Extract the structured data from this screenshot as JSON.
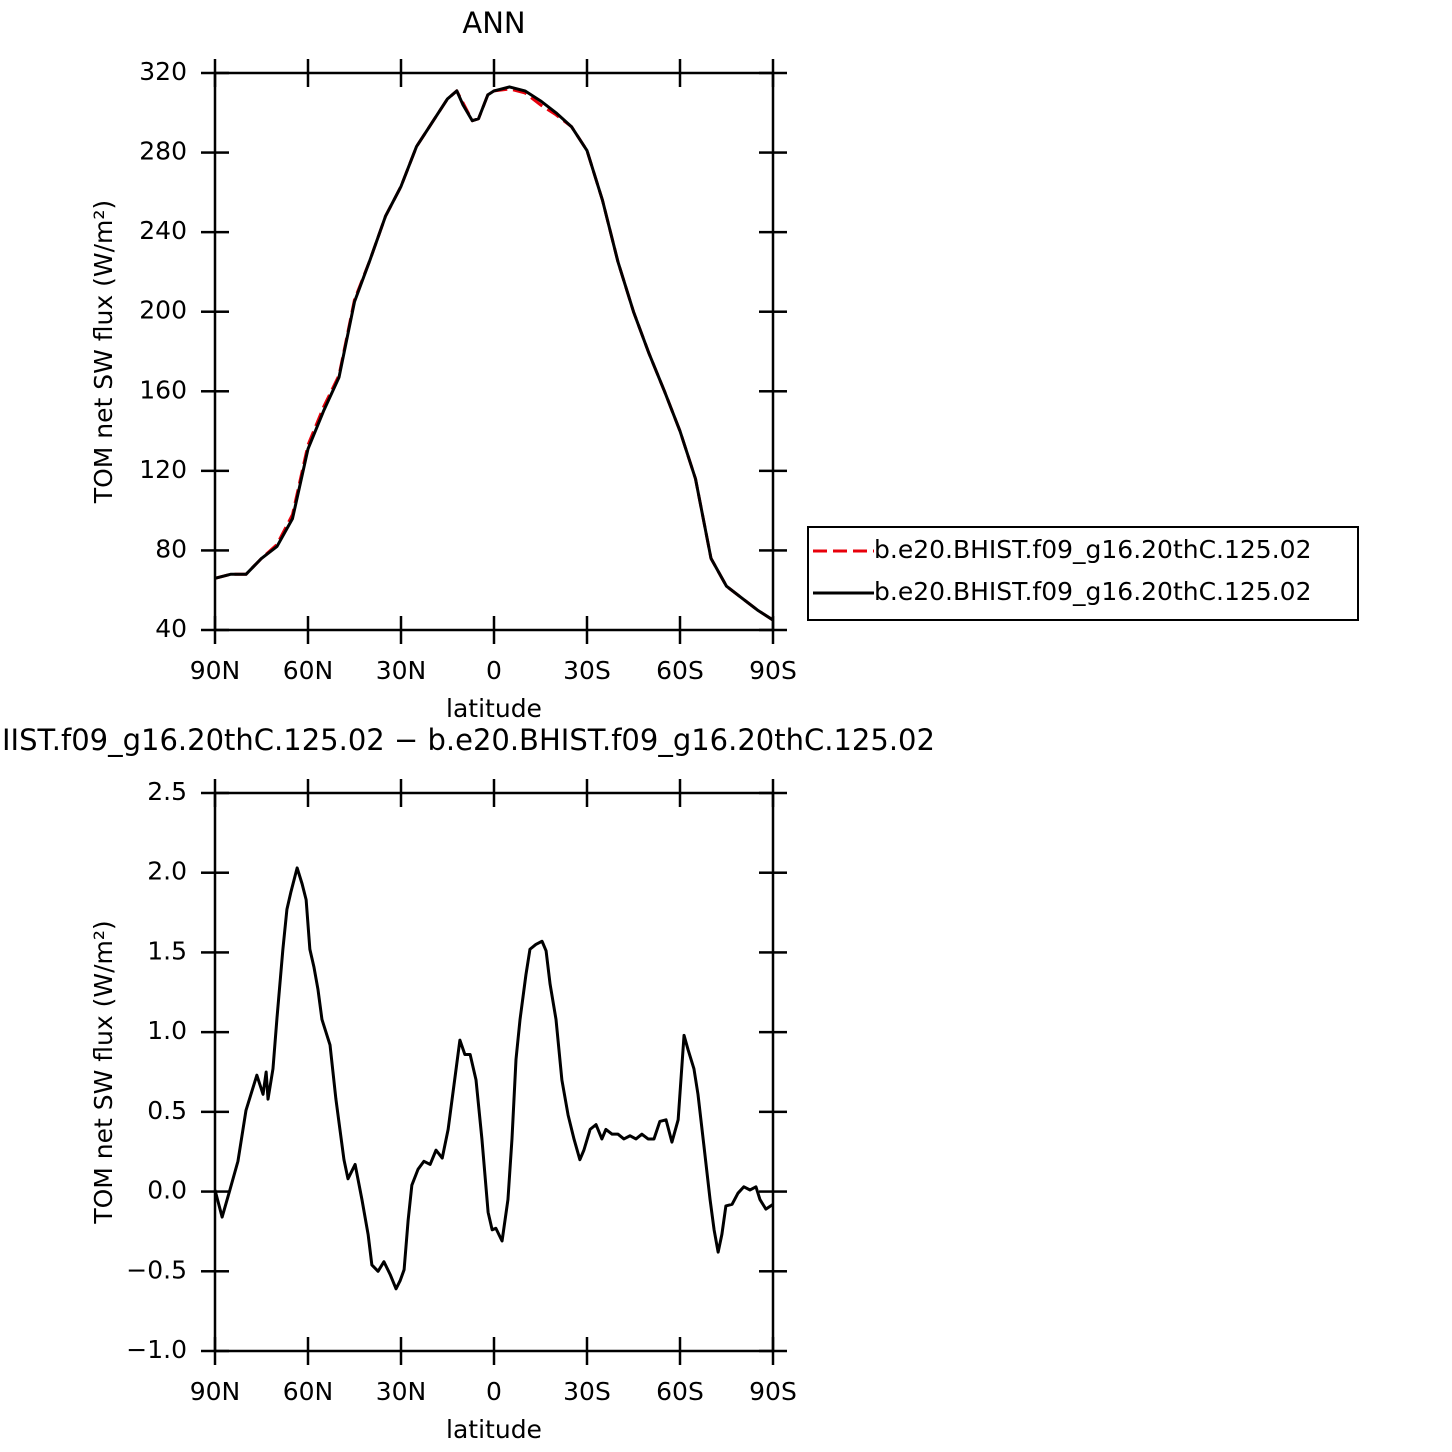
{
  "chart_data": [
    {
      "type": "line",
      "title": "ANN",
      "x_label": "latitude",
      "y_label": "TOM net SW flux (W/m²)",
      "x": [
        90,
        85,
        80,
        75,
        70,
        65,
        60,
        55,
        50,
        45,
        40,
        35,
        30,
        25,
        20,
        15,
        12,
        10,
        7,
        5,
        2,
        0,
        -5,
        -10,
        -15,
        -20,
        -25,
        -30,
        -35,
        -40,
        -45,
        -50,
        -55,
        -60,
        -65,
        -70,
        -75,
        -80,
        -85,
        -90
      ],
      "series": [
        {
          "name": "b.e20.BHIST.f09_g16.20thC.125.02",
          "color": "#e8000b",
          "dashed": true,
          "values": [
            66,
            68,
            68,
            76,
            83,
            98,
            133,
            152,
            168,
            206,
            226,
            248,
            263,
            283,
            295,
            307,
            311,
            305,
            296,
            297,
            309,
            311,
            312,
            310,
            304,
            299,
            293,
            281,
            256,
            225,
            200,
            179,
            160,
            140,
            116,
            76,
            62,
            56,
            50,
            45
          ]
        },
        {
          "name": "b.e20.BHIST.f09_g16.20thC.125.02",
          "color": "#000000",
          "dashed": false,
          "values": [
            66,
            68,
            68,
            76,
            82,
            96,
            131,
            150,
            167,
            205,
            226,
            248,
            263,
            283,
            295,
            307,
            311,
            304,
            296,
            297,
            309,
            311,
            313,
            311,
            306,
            300,
            293,
            281,
            256,
            225,
            200,
            179,
            160,
            140,
            116,
            76,
            62,
            56,
            50,
            45
          ]
        }
      ],
      "xlim": [
        90,
        -90
      ],
      "xticks": [
        {
          "value": 90,
          "label": "90N"
        },
        {
          "value": 60,
          "label": "60N"
        },
        {
          "value": 30,
          "label": "30N"
        },
        0,
        {
          "value": -30,
          "label": "30S"
        },
        {
          "value": -60,
          "label": "60S"
        },
        {
          "value": -90,
          "label": "90S"
        }
      ],
      "ylim": [
        40,
        320
      ],
      "yticks": [
        40,
        80,
        120,
        160,
        200,
        240,
        280,
        320
      ],
      "grid": false,
      "legend": "right"
    },
    {
      "type": "line",
      "title": "IIST.f09_g16.20thC.125.02 − b.e20.BHIST.f09_g16.20thC.125.02",
      "x_label": "latitude",
      "y_label": "TOM net SW flux (W/m²)",
      "x": [
        90.0,
        87.7,
        85.2,
        82.6,
        80.0,
        76.5,
        74.5,
        73.5,
        72.9,
        71.3,
        70.0,
        68.1,
        66.8,
        65.5,
        63.5,
        61.9,
        60.6,
        59.4,
        58.1,
        56.8,
        55.5,
        52.9,
        51.0,
        49.7,
        48.4,
        47.1,
        44.8,
        42.6,
        40.6,
        39.4,
        37.4,
        35.5,
        33.5,
        31.6,
        30.3,
        29.0,
        27.7,
        26.5,
        24.5,
        22.6,
        20.6,
        18.7,
        16.7,
        14.8,
        12.9,
        11.0,
        9.4,
        7.7,
        5.8,
        3.9,
        1.9,
        0.6,
        -0.6,
        -2.6,
        -4.5,
        -5.8,
        -7.1,
        -8.4,
        -10.3,
        -11.6,
        -13.5,
        -15.5,
        -16.8,
        -18.1,
        -20.0,
        -21.9,
        -23.9,
        -25.8,
        -27.7,
        -29.0,
        -31.0,
        -32.9,
        -34.8,
        -36.1,
        -38.1,
        -40.0,
        -41.9,
        -43.9,
        -45.8,
        -47.7,
        -49.7,
        -51.6,
        -53.5,
        -55.5,
        -57.4,
        -59.4,
        -61.3,
        -62.6,
        -64.5,
        -65.8,
        -67.7,
        -69.7,
        -71.0,
        -72.3,
        -73.5,
        -74.8,
        -76.8,
        -78.7,
        -80.6,
        -82.6,
        -84.5,
        -85.8,
        -87.7,
        -90.0
      ],
      "series": [
        {
          "color": "#000000",
          "dashed": false,
          "values": [
            0.01,
            -0.16,
            0.01,
            0.19,
            0.51,
            0.73,
            0.61,
            0.75,
            0.58,
            0.77,
            1.09,
            1.52,
            1.77,
            1.88,
            2.03,
            1.93,
            1.83,
            1.52,
            1.41,
            1.27,
            1.08,
            0.92,
            0.58,
            0.39,
            0.2,
            0.08,
            0.17,
            -0.05,
            -0.27,
            -0.46,
            -0.5,
            -0.44,
            -0.52,
            -0.61,
            -0.56,
            -0.49,
            -0.18,
            0.04,
            0.14,
            0.19,
            0.17,
            0.26,
            0.21,
            0.39,
            0.67,
            0.95,
            0.86,
            0.86,
            0.7,
            0.33,
            -0.13,
            -0.24,
            -0.23,
            -0.31,
            -0.05,
            0.33,
            0.83,
            1.08,
            1.36,
            1.52,
            1.55,
            1.57,
            1.51,
            1.3,
            1.08,
            0.7,
            0.48,
            0.33,
            0.2,
            0.26,
            0.39,
            0.42,
            0.33,
            0.39,
            0.36,
            0.36,
            0.33,
            0.35,
            0.33,
            0.36,
            0.33,
            0.33,
            0.44,
            0.45,
            0.31,
            0.45,
            0.98,
            0.89,
            0.77,
            0.61,
            0.29,
            -0.05,
            -0.24,
            -0.38,
            -0.27,
            -0.09,
            -0.08,
            -0.01,
            0.03,
            0.01,
            0.03,
            -0.05,
            -0.11,
            -0.08
          ]
        }
      ],
      "xlim": [
        90,
        -90
      ],
      "xticks": [
        {
          "value": 90,
          "label": "90N"
        },
        {
          "value": 60,
          "label": "60N"
        },
        {
          "value": 30,
          "label": "30N"
        },
        0,
        {
          "value": -30,
          "label": "30S"
        },
        {
          "value": -60,
          "label": "60S"
        },
        {
          "value": -90,
          "label": "90S"
        }
      ],
      "ylim": [
        -1.0,
        2.5
      ],
      "yticks": [
        {
          "value": -1.0,
          "label": "−1.0"
        },
        {
          "value": -0.5,
          "label": "−0.5"
        },
        {
          "value": 0,
          "label": "0.0"
        },
        0.5,
        {
          "value": 1.0,
          "label": "1.0"
        },
        1.5,
        {
          "value": 2.0,
          "label": "2.0"
        },
        2.5
      ],
      "grid": false
    }
  ]
}
